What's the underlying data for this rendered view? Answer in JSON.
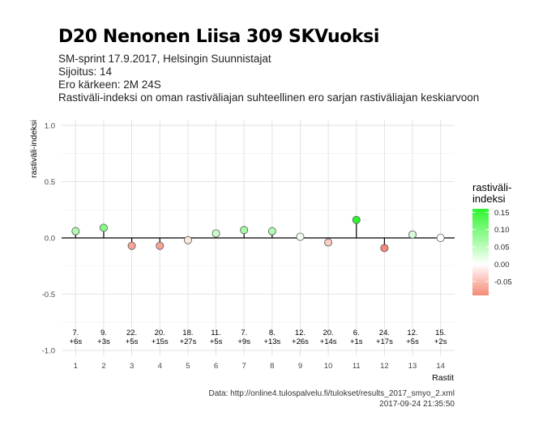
{
  "header": {
    "title": "D20 Nenonen Liisa 309 SKVuoksi",
    "subtitle_lines": [
      "SM-sprint 17.9.2017, Helsingin Suunnistajat",
      "Sijoitus: 14",
      "Ero kärkeen: 2M 24S",
      "Rastiväli-indeksi on oman rastiväliajan suhteellinen ero sarjan rastiväliajan keskiarvoon"
    ]
  },
  "caption": {
    "source": "Data: http://online4.tulospalvelu.fi/tulokset/results_2017_smyo_2.xml",
    "timestamp": "2017-09-24 21:35:50"
  },
  "legend": {
    "title_line1": "rastiväli-",
    "title_line2": "indeksi",
    "ticks": [
      "0.15",
      "0.10",
      "0.05",
      "0.00",
      "-0.05"
    ],
    "tick_values": [
      0.15,
      0.1,
      0.05,
      0.0,
      -0.05
    ],
    "color_high": "#2ef52e",
    "color_mid": "#ffffff",
    "color_low": "#f58a76"
  },
  "chart_data": {
    "type": "scatter",
    "style": "lollipop",
    "xlabel": "Rastit",
    "ylabel": "rastiväli-indeksi",
    "ylim": [
      -1.05,
      1.05
    ],
    "xlim": [
      0.5,
      14.5
    ],
    "yticks": [
      -1.0,
      -0.5,
      0.0,
      0.5,
      1.0
    ],
    "ytick_labels": [
      "-1.0",
      "-0.5",
      "0.0",
      "0.5",
      "1.0"
    ],
    "grid": true,
    "x": [
      1,
      2,
      3,
      4,
      5,
      6,
      7,
      8,
      9,
      10,
      11,
      12,
      13,
      14
    ],
    "values": [
      0.06,
      0.09,
      -0.07,
      -0.07,
      -0.02,
      0.04,
      0.07,
      0.06,
      0.01,
      -0.04,
      0.16,
      -0.09,
      0.03,
      0.0
    ],
    "rank_labels": [
      "7.",
      "9.",
      "22.",
      "20.",
      "18.",
      "11.",
      "7.",
      "8.",
      "12.",
      "20.",
      "6.",
      "24.",
      "12.",
      "15."
    ],
    "time_labels": [
      "+6s",
      "+3s",
      "+5s",
      "+15s",
      "+27s",
      "+5s",
      "+9s",
      "+13s",
      "+26s",
      "+14s",
      "+1s",
      "+17s",
      "+5s",
      "+2s"
    ]
  }
}
